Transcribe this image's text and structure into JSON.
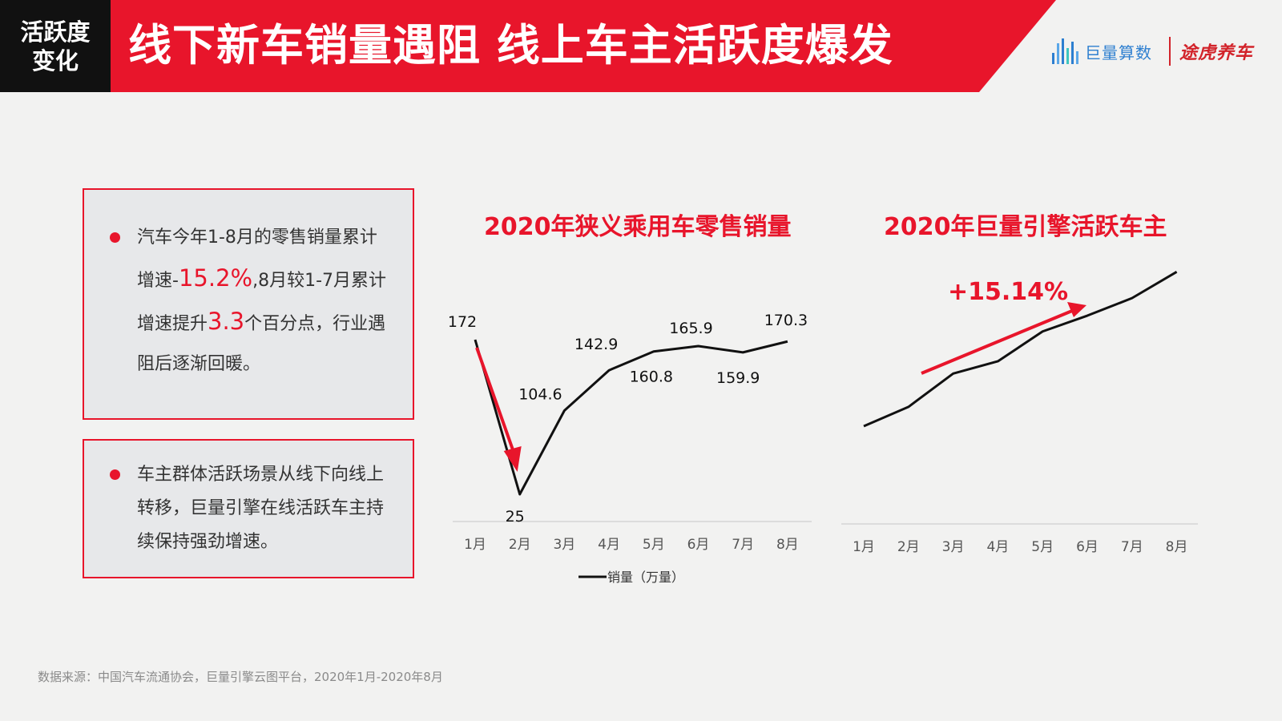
{
  "header": {
    "tag_line1": "活跃度",
    "tag_line2": "变化",
    "title": "线下新车销量遇阻 线上车主活跃度爆发",
    "logo_juliang": "巨量算数",
    "logo_tuhu": "途虎养车"
  },
  "box1": {
    "part1": "汽车今年1-8月的零售销量累计增速-",
    "hl1": "15.2%",
    "part2": ",8月较1-7月累计增速提升",
    "hl2": "3.3",
    "part3": "个百分点，行业遇阻后逐渐回暖。"
  },
  "box2": {
    "text": "车主群体活跃场景从线下向线上转移，巨量引擎在线活跃车主持续保持强劲增速。"
  },
  "growth_label": "+15.14%",
  "source": "数据来源：中国汽车流通协会，巨量引擎云图平台，2020年1月-2020年8月",
  "colors": {
    "accent_red": "#e8152b",
    "line": "#111111",
    "juliang_blue": "#2d7fd0"
  },
  "chart_data": [
    {
      "type": "line",
      "title": "2020年狭义乘用车零售销量",
      "categories": [
        "1月",
        "2月",
        "3月",
        "4月",
        "5月",
        "6月",
        "7月",
        "8月"
      ],
      "series": [
        {
          "name": "销量（万量）",
          "values": [
            172,
            25,
            104.6,
            142.9,
            160.8,
            165.9,
            159.9,
            170.3
          ]
        }
      ],
      "data_labels": [
        "172",
        "25",
        "104.6",
        "142.9",
        "160.8",
        "165.9",
        "159.9",
        "170.3"
      ],
      "legend": "bottom"
    },
    {
      "type": "line",
      "title": "2020年巨量引擎活跃车主",
      "categories": [
        "1月",
        "2月",
        "3月",
        "4月",
        "5月",
        "6月",
        "7月",
        "8月"
      ],
      "series": [
        {
          "values": [
            0.0,
            0.11,
            0.3,
            0.37,
            0.54,
            0.63,
            0.73,
            0.88
          ]
        }
      ],
      "annotation": "+15.14%",
      "legend": "none"
    }
  ]
}
